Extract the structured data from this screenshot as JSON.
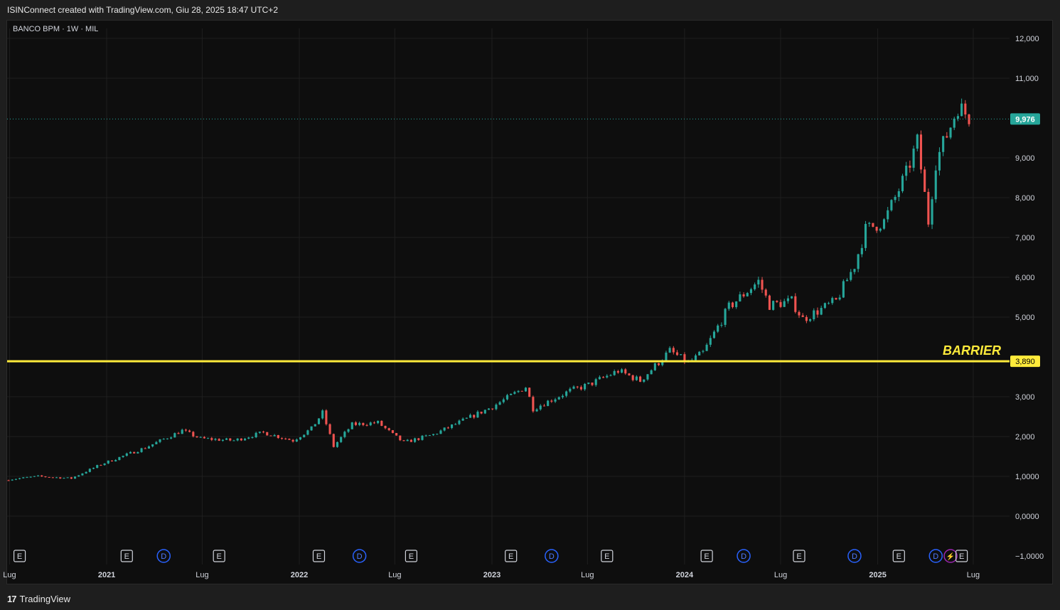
{
  "header": {
    "title": "ISINConnect created with TradingView.com, Giu 28, 2025 18:47 UTC+2"
  },
  "symbol": {
    "label": "BANCO BPM · 1W · MIL"
  },
  "footer": {
    "logo_text": "TradingView",
    "logo_icon": "tradingview-logo-icon"
  },
  "colors": {
    "background": "#0e0e0e",
    "up": "#26a69a",
    "down": "#ef5350",
    "barrier": "#ffeb3b",
    "grid": "#1f1f1f",
    "text": "#d1d4dc",
    "dividend_badge": "#2962ff",
    "split_badge": "#9c27b0"
  },
  "chart_data": {
    "type": "candlestick",
    "title": "BANCO BPM · 1W · MIL",
    "ylim": [
      -1.0,
      12.0
    ],
    "y_ticks": [
      "12,000",
      "11,000",
      "9,000",
      "8,000",
      "7,000",
      "6,000",
      "5,000",
      "3,000",
      "2,000",
      "1,0000",
      "0,0000",
      "−1,0000"
    ],
    "y_tick_values": [
      12,
      11,
      9,
      8,
      7,
      6,
      5,
      3,
      2,
      1,
      0,
      -1
    ],
    "x_labels": [
      "Lug",
      "2021",
      "Lug",
      "2022",
      "Lug",
      "2023",
      "Lug",
      "2024",
      "Lug",
      "2025",
      "Lug"
    ],
    "x_label_dates": [
      "2020-07-01",
      "2021-01-01",
      "2021-07-01",
      "2022-01-01",
      "2022-07-01",
      "2023-01-01",
      "2023-07-01",
      "2024-01-01",
      "2024-07-01",
      "2025-01-01",
      "2025-07-01"
    ],
    "date_range": [
      "2020-06-29",
      "2025-06-27"
    ],
    "close_path": [
      [
        "2020-06-29",
        0.92
      ],
      [
        "2020-08-24",
        1.0
      ],
      [
        "2020-10-26",
        0.95
      ],
      [
        "2020-12-21",
        1.3
      ],
      [
        "2021-03-15",
        1.72
      ],
      [
        "2021-05-24",
        2.15
      ],
      [
        "2021-06-28",
        1.95
      ],
      [
        "2021-08-30",
        1.9
      ],
      [
        "2021-10-25",
        2.1
      ],
      [
        "2021-12-20",
        1.9
      ],
      [
        "2022-01-24",
        2.2
      ],
      [
        "2022-02-14",
        2.6
      ],
      [
        "2022-03-07",
        1.75
      ],
      [
        "2022-04-11",
        2.3
      ],
      [
        "2022-05-30",
        2.35
      ],
      [
        "2022-06-27",
        2.05
      ],
      [
        "2022-07-18",
        1.85
      ],
      [
        "2022-09-12",
        2.05
      ],
      [
        "2022-11-07",
        2.4
      ],
      [
        "2023-01-02",
        2.75
      ],
      [
        "2023-03-06",
        3.25
      ],
      [
        "2023-03-20",
        2.7
      ],
      [
        "2023-05-29",
        3.15
      ],
      [
        "2023-07-03",
        3.3
      ],
      [
        "2023-08-28",
        3.65
      ],
      [
        "2023-10-09",
        3.4
      ],
      [
        "2023-12-04",
        4.15
      ],
      [
        "2024-01-08",
        3.85
      ],
      [
        "2024-02-05",
        4.1
      ],
      [
        "2024-03-25",
        5.25
      ],
      [
        "2024-05-20",
        5.9
      ],
      [
        "2024-06-10",
        5.3
      ],
      [
        "2024-07-22",
        5.4
      ],
      [
        "2024-08-12",
        4.95
      ],
      [
        "2024-10-14",
        5.4
      ],
      [
        "2024-11-18",
        6.3
      ],
      [
        "2024-12-09",
        7.2
      ],
      [
        "2025-01-13",
        7.4
      ],
      [
        "2025-02-24",
        8.6
      ],
      [
        "2025-03-17",
        9.4
      ],
      [
        "2025-04-07",
        7.4
      ],
      [
        "2025-04-21",
        8.9
      ],
      [
        "2025-05-19",
        9.8
      ],
      [
        "2025-06-02",
        10.3
      ],
      [
        "2025-06-27",
        9.976
      ]
    ],
    "last_price": {
      "value": 9.976,
      "label": "9,976"
    },
    "barrier": {
      "value": 3.89,
      "label": "3,890",
      "name": "BARRIER"
    },
    "events": [
      {
        "type": "E",
        "date": "2020-07-20"
      },
      {
        "type": "E",
        "date": "2021-02-08"
      },
      {
        "type": "D",
        "date": "2021-04-19"
      },
      {
        "type": "E",
        "date": "2021-08-02"
      },
      {
        "type": "E",
        "date": "2022-02-07"
      },
      {
        "type": "D",
        "date": "2022-04-25"
      },
      {
        "type": "E",
        "date": "2022-08-01"
      },
      {
        "type": "E",
        "date": "2023-02-06"
      },
      {
        "type": "D",
        "date": "2023-04-24"
      },
      {
        "type": "E",
        "date": "2023-08-07"
      },
      {
        "type": "E",
        "date": "2024-02-12"
      },
      {
        "type": "D",
        "date": "2024-04-22"
      },
      {
        "type": "E",
        "date": "2024-08-05"
      },
      {
        "type": "D",
        "date": "2024-11-18"
      },
      {
        "type": "E",
        "date": "2025-02-10"
      },
      {
        "type": "D",
        "date": "2025-04-21"
      },
      {
        "type": "S",
        "date": "2025-05-19"
      },
      {
        "type": "E",
        "date": "2025-06-09"
      }
    ]
  }
}
